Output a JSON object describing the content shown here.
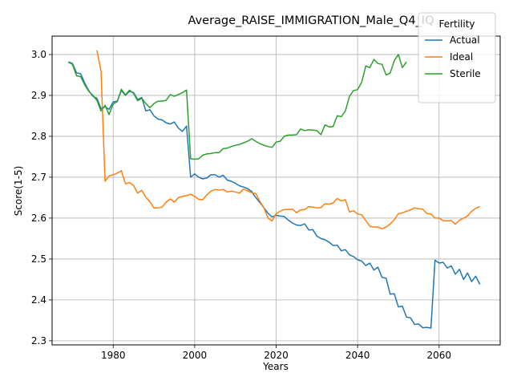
{
  "chart_data": {
    "type": "line",
    "title": "Average_RAISE_IMMIGRATION_Male_Q4_IQ",
    "xlabel": "Years",
    "ylabel": "Score(1-5)",
    "xlim": [
      1965,
      2075
    ],
    "ylim": [
      2.29,
      3.045
    ],
    "xticks": [
      1980,
      2000,
      2020,
      2040,
      2060
    ],
    "yticks": [
      2.3,
      2.4,
      2.5,
      2.6,
      2.7,
      2.8,
      2.9,
      3.0
    ],
    "grid": true,
    "legend": {
      "title": "Fertility",
      "placement": "top-right"
    },
    "series": [
      {
        "name": "Actual",
        "color": "#1f77b4",
        "x": [
          1969,
          1970,
          1971,
          1972,
          1973,
          1974,
          1975,
          1976,
          1977,
          1978,
          1979,
          1980,
          1981,
          1982,
          1983,
          1984,
          1985,
          1986,
          1987,
          1988,
          1989,
          1990,
          1991,
          1992,
          1993,
          1994,
          1995,
          1996,
          1997,
          1998,
          1999,
          2000,
          2001,
          2002,
          2003,
          2004,
          2005,
          2006,
          2007,
          2008,
          2009,
          2010,
          2011,
          2012,
          2013,
          2014,
          2015,
          2016,
          2017,
          2018,
          2019,
          2020,
          2021,
          2022,
          2023,
          2024,
          2025,
          2026,
          2027,
          2028,
          2029,
          2030,
          2031,
          2032,
          2033,
          2034,
          2035,
          2036,
          2037,
          2038,
          2039,
          2040,
          2041,
          2042,
          2043,
          2044,
          2045,
          2046,
          2047,
          2048,
          2049,
          2050,
          2051,
          2052,
          2053,
          2054,
          2055,
          2056,
          2057,
          2058,
          2059,
          2060,
          2061,
          2062,
          2063,
          2064,
          2065,
          2066,
          2067,
          2068,
          2069,
          2070
        ],
        "values": [
          2.982,
          2.978,
          2.955,
          2.953,
          2.93,
          2.912,
          2.898,
          2.893,
          2.868,
          2.872,
          2.866,
          2.884,
          2.886,
          2.912,
          2.9,
          2.91,
          2.907,
          2.89,
          2.895,
          2.862,
          2.865,
          2.85,
          2.842,
          2.84,
          2.833,
          2.83,
          2.835,
          2.82,
          2.812,
          2.825,
          2.7,
          2.708,
          2.7,
          2.696,
          2.698,
          2.706,
          2.706,
          2.7,
          2.705,
          2.693,
          2.69,
          2.685,
          2.679,
          2.676,
          2.672,
          2.665,
          2.65,
          2.638,
          2.625,
          2.612,
          2.603,
          2.607,
          2.605,
          2.604,
          2.595,
          2.588,
          2.583,
          2.582,
          2.586,
          2.571,
          2.572,
          2.556,
          2.55,
          2.547,
          2.541,
          2.533,
          2.534,
          2.52,
          2.523,
          2.51,
          2.506,
          2.498,
          2.495,
          2.484,
          2.49,
          2.473,
          2.48,
          2.455,
          2.453,
          2.414,
          2.415,
          2.383,
          2.385,
          2.358,
          2.356,
          2.34,
          2.341,
          2.332,
          2.333,
          2.331,
          2.497,
          2.49,
          2.492,
          2.478,
          2.483,
          2.463,
          2.475,
          2.45,
          2.466,
          2.445,
          2.458,
          2.438
        ]
      },
      {
        "name": "Ideal",
        "color": "#ff7f0e",
        "x": [
          1976,
          1977,
          1978,
          1979,
          1980,
          1981,
          1982,
          1983,
          1984,
          1985,
          1986,
          1987,
          1988,
          1989,
          1990,
          1991,
          1992,
          1993,
          1994,
          1995,
          1996,
          1997,
          1998,
          1999,
          2000,
          2001,
          2002,
          2003,
          2004,
          2005,
          2006,
          2007,
          2008,
          2009,
          2010,
          2011,
          2012,
          2013,
          2014,
          2015,
          2016,
          2017,
          2018,
          2019,
          2020,
          2021,
          2022,
          2023,
          2024,
          2025,
          2026,
          2027,
          2028,
          2029,
          2030,
          2031,
          2032,
          2033,
          2034,
          2035,
          2036,
          2037,
          2038,
          2039,
          2040,
          2041,
          2042,
          2043,
          2044,
          2045,
          2046,
          2047,
          2048,
          2049,
          2050,
          2051,
          2052,
          2053,
          2054,
          2055,
          2056,
          2057,
          2058,
          2059,
          2060,
          2061,
          2062,
          2063,
          2064,
          2065,
          2066,
          2067,
          2068,
          2069,
          2070
        ],
        "values": [
          3.01,
          2.96,
          2.69,
          2.703,
          2.706,
          2.71,
          2.716,
          2.684,
          2.687,
          2.68,
          2.661,
          2.668,
          2.651,
          2.64,
          2.625,
          2.625,
          2.627,
          2.639,
          2.647,
          2.639,
          2.65,
          2.653,
          2.655,
          2.658,
          2.653,
          2.646,
          2.645,
          2.657,
          2.666,
          2.67,
          2.668,
          2.67,
          2.664,
          2.666,
          2.664,
          2.661,
          2.671,
          2.667,
          2.662,
          2.66,
          2.641,
          2.625,
          2.6,
          2.593,
          2.611,
          2.617,
          2.621,
          2.621,
          2.622,
          2.613,
          2.62,
          2.621,
          2.628,
          2.627,
          2.625,
          2.626,
          2.635,
          2.634,
          2.637,
          2.648,
          2.642,
          2.645,
          2.615,
          2.618,
          2.61,
          2.608,
          2.594,
          2.58,
          2.578,
          2.578,
          2.574,
          2.578,
          2.586,
          2.596,
          2.611,
          2.613,
          2.617,
          2.62,
          2.625,
          2.623,
          2.622,
          2.611,
          2.61,
          2.6,
          2.6,
          2.594,
          2.593,
          2.594,
          2.585,
          2.595,
          2.6,
          2.605,
          2.617,
          2.624,
          2.628
        ]
      },
      {
        "name": "Sterile",
        "color": "#2ca02c",
        "x": [
          1969,
          1970,
          1971,
          1972,
          1973,
          1974,
          1975,
          1976,
          1977,
          1978,
          1979,
          1980,
          1981,
          1982,
          1983,
          1984,
          1985,
          1986,
          1987,
          1988,
          1989,
          1990,
          1991,
          1992,
          1993,
          1994,
          1995,
          1996,
          1997,
          1998,
          1999,
          2000,
          2001,
          2002,
          2003,
          2004,
          2005,
          2006,
          2007,
          2008,
          2009,
          2010,
          2011,
          2012,
          2013,
          2014,
          2015,
          2016,
          2017,
          2018,
          2019,
          2020,
          2021,
          2022,
          2023,
          2024,
          2025,
          2026,
          2027,
          2028,
          2029,
          2030,
          2031,
          2032,
          2033,
          2034,
          2035,
          2036,
          2037,
          2038,
          2039,
          2040,
          2041,
          2042,
          2043,
          2044,
          2045,
          2046,
          2047,
          2048,
          2049,
          2050,
          2051,
          2052
        ],
        "values": [
          2.981,
          2.976,
          2.948,
          2.946,
          2.926,
          2.91,
          2.9,
          2.888,
          2.862,
          2.876,
          2.853,
          2.879,
          2.885,
          2.915,
          2.901,
          2.913,
          2.905,
          2.887,
          2.893,
          2.88,
          2.87,
          2.88,
          2.886,
          2.886,
          2.888,
          2.902,
          2.898,
          2.902,
          2.907,
          2.913,
          2.745,
          2.744,
          2.745,
          2.754,
          2.757,
          2.758,
          2.76,
          2.76,
          2.77,
          2.771,
          2.775,
          2.778,
          2.78,
          2.784,
          2.788,
          2.794,
          2.788,
          2.782,
          2.778,
          2.775,
          2.773,
          2.786,
          2.788,
          2.8,
          2.803,
          2.803,
          2.804,
          2.818,
          2.814,
          2.816,
          2.815,
          2.814,
          2.804,
          2.828,
          2.823,
          2.824,
          2.85,
          2.848,
          2.862,
          2.898,
          2.912,
          2.914,
          2.932,
          2.972,
          2.968,
          2.988,
          2.978,
          2.976,
          2.95,
          2.955,
          2.985,
          3.0,
          2.968,
          2.982
        ]
      }
    ]
  }
}
